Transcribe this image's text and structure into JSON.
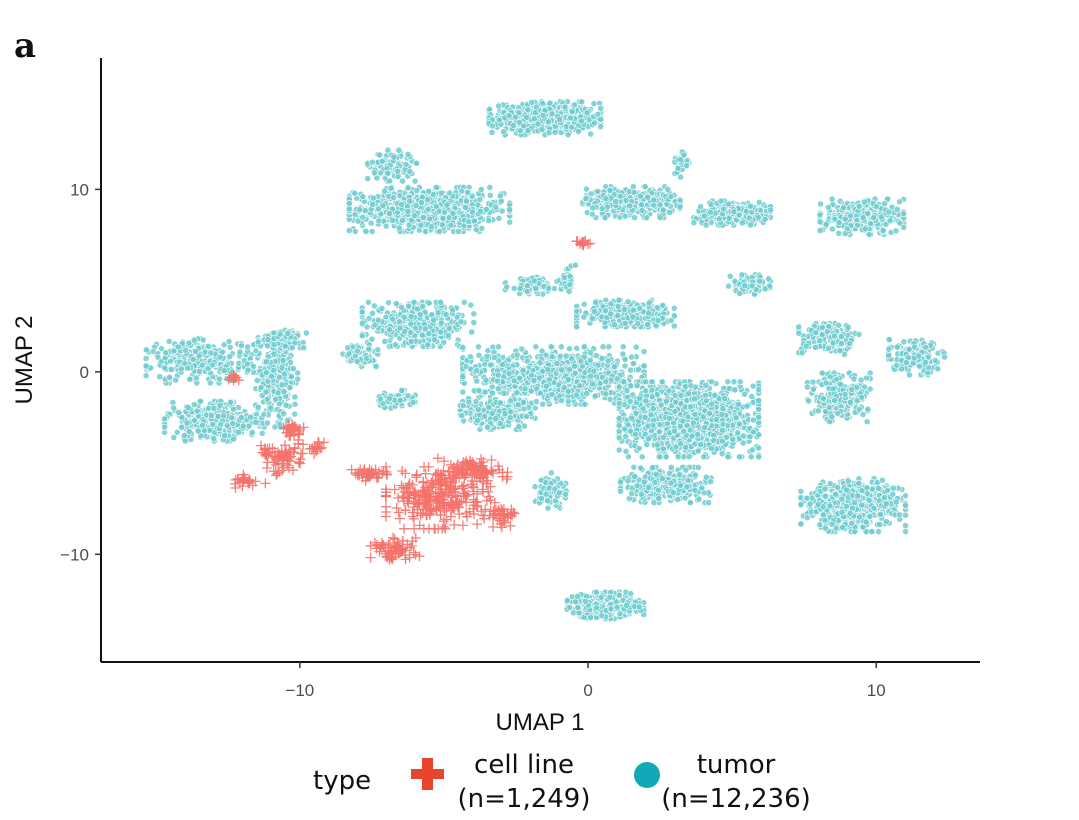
{
  "panel_label": "a",
  "chart_data": {
    "type": "scatter",
    "title": "",
    "xlabel": "UMAP 1",
    "ylabel": "UMAP 2",
    "xlim": [
      -16.9,
      13.6
    ],
    "ylim": [
      -15.9,
      17.2
    ],
    "xticks": [
      -10,
      0,
      10
    ],
    "yticks": [
      -10,
      0,
      10
    ],
    "xtick_labels": [
      "−10",
      "0",
      "10"
    ],
    "ytick_labels": [
      "−10",
      "0",
      "10"
    ],
    "grid": false,
    "legend": {
      "title": "type",
      "position": "bottom",
      "entries": [
        {
          "label": "cell line",
          "count": "(n=1,249)",
          "color": "#e8452f",
          "marker": "cross"
        },
        {
          "label": "tumor",
          "count": "(n=12,236)",
          "color": "#11a8b8",
          "marker": "circle"
        }
      ]
    },
    "series": [
      {
        "name": "tumor",
        "marker": "circle",
        "color": "#6fcbcf",
        "n": 12236,
        "clusters": [
          {
            "cx": -1.5,
            "cy": 13.9,
            "sx": 1.6,
            "sy": 0.75,
            "n": 600
          },
          {
            "cx": -5.5,
            "cy": 8.9,
            "sx": 2.3,
            "sy": 1.0,
            "n": 800
          },
          {
            "cx": -6.8,
            "cy": 11.3,
            "sx": 0.7,
            "sy": 0.7,
            "n": 120
          },
          {
            "cx": 1.5,
            "cy": 9.3,
            "sx": 1.4,
            "sy": 0.7,
            "n": 380
          },
          {
            "cx": 5.0,
            "cy": 8.7,
            "sx": 1.1,
            "sy": 0.55,
            "n": 260
          },
          {
            "cx": 9.5,
            "cy": 8.5,
            "sx": 1.2,
            "sy": 0.8,
            "n": 320
          },
          {
            "cx": 3.2,
            "cy": 11.4,
            "sx": 0.25,
            "sy": 0.6,
            "n": 40
          },
          {
            "cx": 5.6,
            "cy": 4.8,
            "sx": 0.6,
            "sy": 0.45,
            "n": 90
          },
          {
            "cx": -1.9,
            "cy": 4.7,
            "sx": 0.8,
            "sy": 0.4,
            "n": 100
          },
          {
            "cx": -0.7,
            "cy": 5.0,
            "sx": 0.25,
            "sy": 0.7,
            "n": 30
          },
          {
            "cx": -5.9,
            "cy": 2.6,
            "sx": 1.6,
            "sy": 1.0,
            "n": 400
          },
          {
            "cx": 1.3,
            "cy": 3.2,
            "sx": 1.4,
            "sy": 0.6,
            "n": 300
          },
          {
            "cx": -13.4,
            "cy": 0.6,
            "sx": 1.6,
            "sy": 1.0,
            "n": 320
          },
          {
            "cx": -13.0,
            "cy": -2.7,
            "sx": 1.4,
            "sy": 0.9,
            "n": 300
          },
          {
            "cx": -10.8,
            "cy": -0.6,
            "sx": 0.6,
            "sy": 2.0,
            "n": 260
          },
          {
            "cx": -10.6,
            "cy": 1.8,
            "sx": 0.7,
            "sy": 0.4,
            "n": 120
          },
          {
            "cx": -7.9,
            "cy": 0.9,
            "sx": 0.5,
            "sy": 0.5,
            "n": 80
          },
          {
            "cx": -6.7,
            "cy": -1.5,
            "sx": 0.6,
            "sy": 0.4,
            "n": 80
          },
          {
            "cx": -1.2,
            "cy": -0.2,
            "sx": 2.6,
            "sy": 1.3,
            "n": 900
          },
          {
            "cx": -3.1,
            "cy": -2.3,
            "sx": 1.1,
            "sy": 0.7,
            "n": 250
          },
          {
            "cx": 3.5,
            "cy": -2.6,
            "sx": 2.0,
            "sy": 1.7,
            "n": 1300
          },
          {
            "cx": 2.7,
            "cy": -6.2,
            "sx": 1.3,
            "sy": 0.8,
            "n": 350
          },
          {
            "cx": 9.2,
            "cy": -7.3,
            "sx": 1.5,
            "sy": 1.2,
            "n": 600
          },
          {
            "cx": 8.7,
            "cy": -1.4,
            "sx": 0.9,
            "sy": 1.1,
            "n": 230
          },
          {
            "cx": 11.4,
            "cy": 0.8,
            "sx": 0.8,
            "sy": 0.8,
            "n": 180
          },
          {
            "cx": 8.4,
            "cy": 1.8,
            "sx": 0.9,
            "sy": 0.7,
            "n": 160
          },
          {
            "cx": -1.3,
            "cy": -6.5,
            "sx": 0.5,
            "sy": 0.8,
            "n": 70
          },
          {
            "cx": 0.6,
            "cy": -12.8,
            "sx": 1.1,
            "sy": 0.6,
            "n": 340
          },
          {
            "cx": -2.6,
            "cy": -0.3,
            "sx": 0.6,
            "sy": 0.4,
            "n": 90
          }
        ]
      },
      {
        "name": "cell line",
        "marker": "cross",
        "color": "#f5726b",
        "n": 1249,
        "clusters": [
          {
            "cx": -5.2,
            "cy": -6.9,
            "sx": 1.5,
            "sy": 1.4,
            "n": 260
          },
          {
            "cx": -4.0,
            "cy": -5.4,
            "sx": 1.0,
            "sy": 0.6,
            "n": 100
          },
          {
            "cx": -6.7,
            "cy": -9.7,
            "sx": 0.7,
            "sy": 0.5,
            "n": 70
          },
          {
            "cx": -7.6,
            "cy": -5.6,
            "sx": 0.5,
            "sy": 0.3,
            "n": 40
          },
          {
            "cx": -10.6,
            "cy": -4.7,
            "sx": 0.7,
            "sy": 0.8,
            "n": 70
          },
          {
            "cx": -10.2,
            "cy": -3.2,
            "sx": 0.3,
            "sy": 0.3,
            "n": 25
          },
          {
            "cx": -11.8,
            "cy": -6.0,
            "sx": 0.5,
            "sy": 0.3,
            "n": 25
          },
          {
            "cx": -9.4,
            "cy": -4.2,
            "sx": 0.3,
            "sy": 0.3,
            "n": 15
          },
          {
            "cx": -12.3,
            "cy": -0.3,
            "sx": 0.15,
            "sy": 0.15,
            "n": 12
          },
          {
            "cx": -0.2,
            "cy": 7.1,
            "sx": 0.25,
            "sy": 0.15,
            "n": 15
          },
          {
            "cx": -3.0,
            "cy": -7.8,
            "sx": 0.6,
            "sy": 0.6,
            "n": 40
          }
        ]
      }
    ]
  }
}
